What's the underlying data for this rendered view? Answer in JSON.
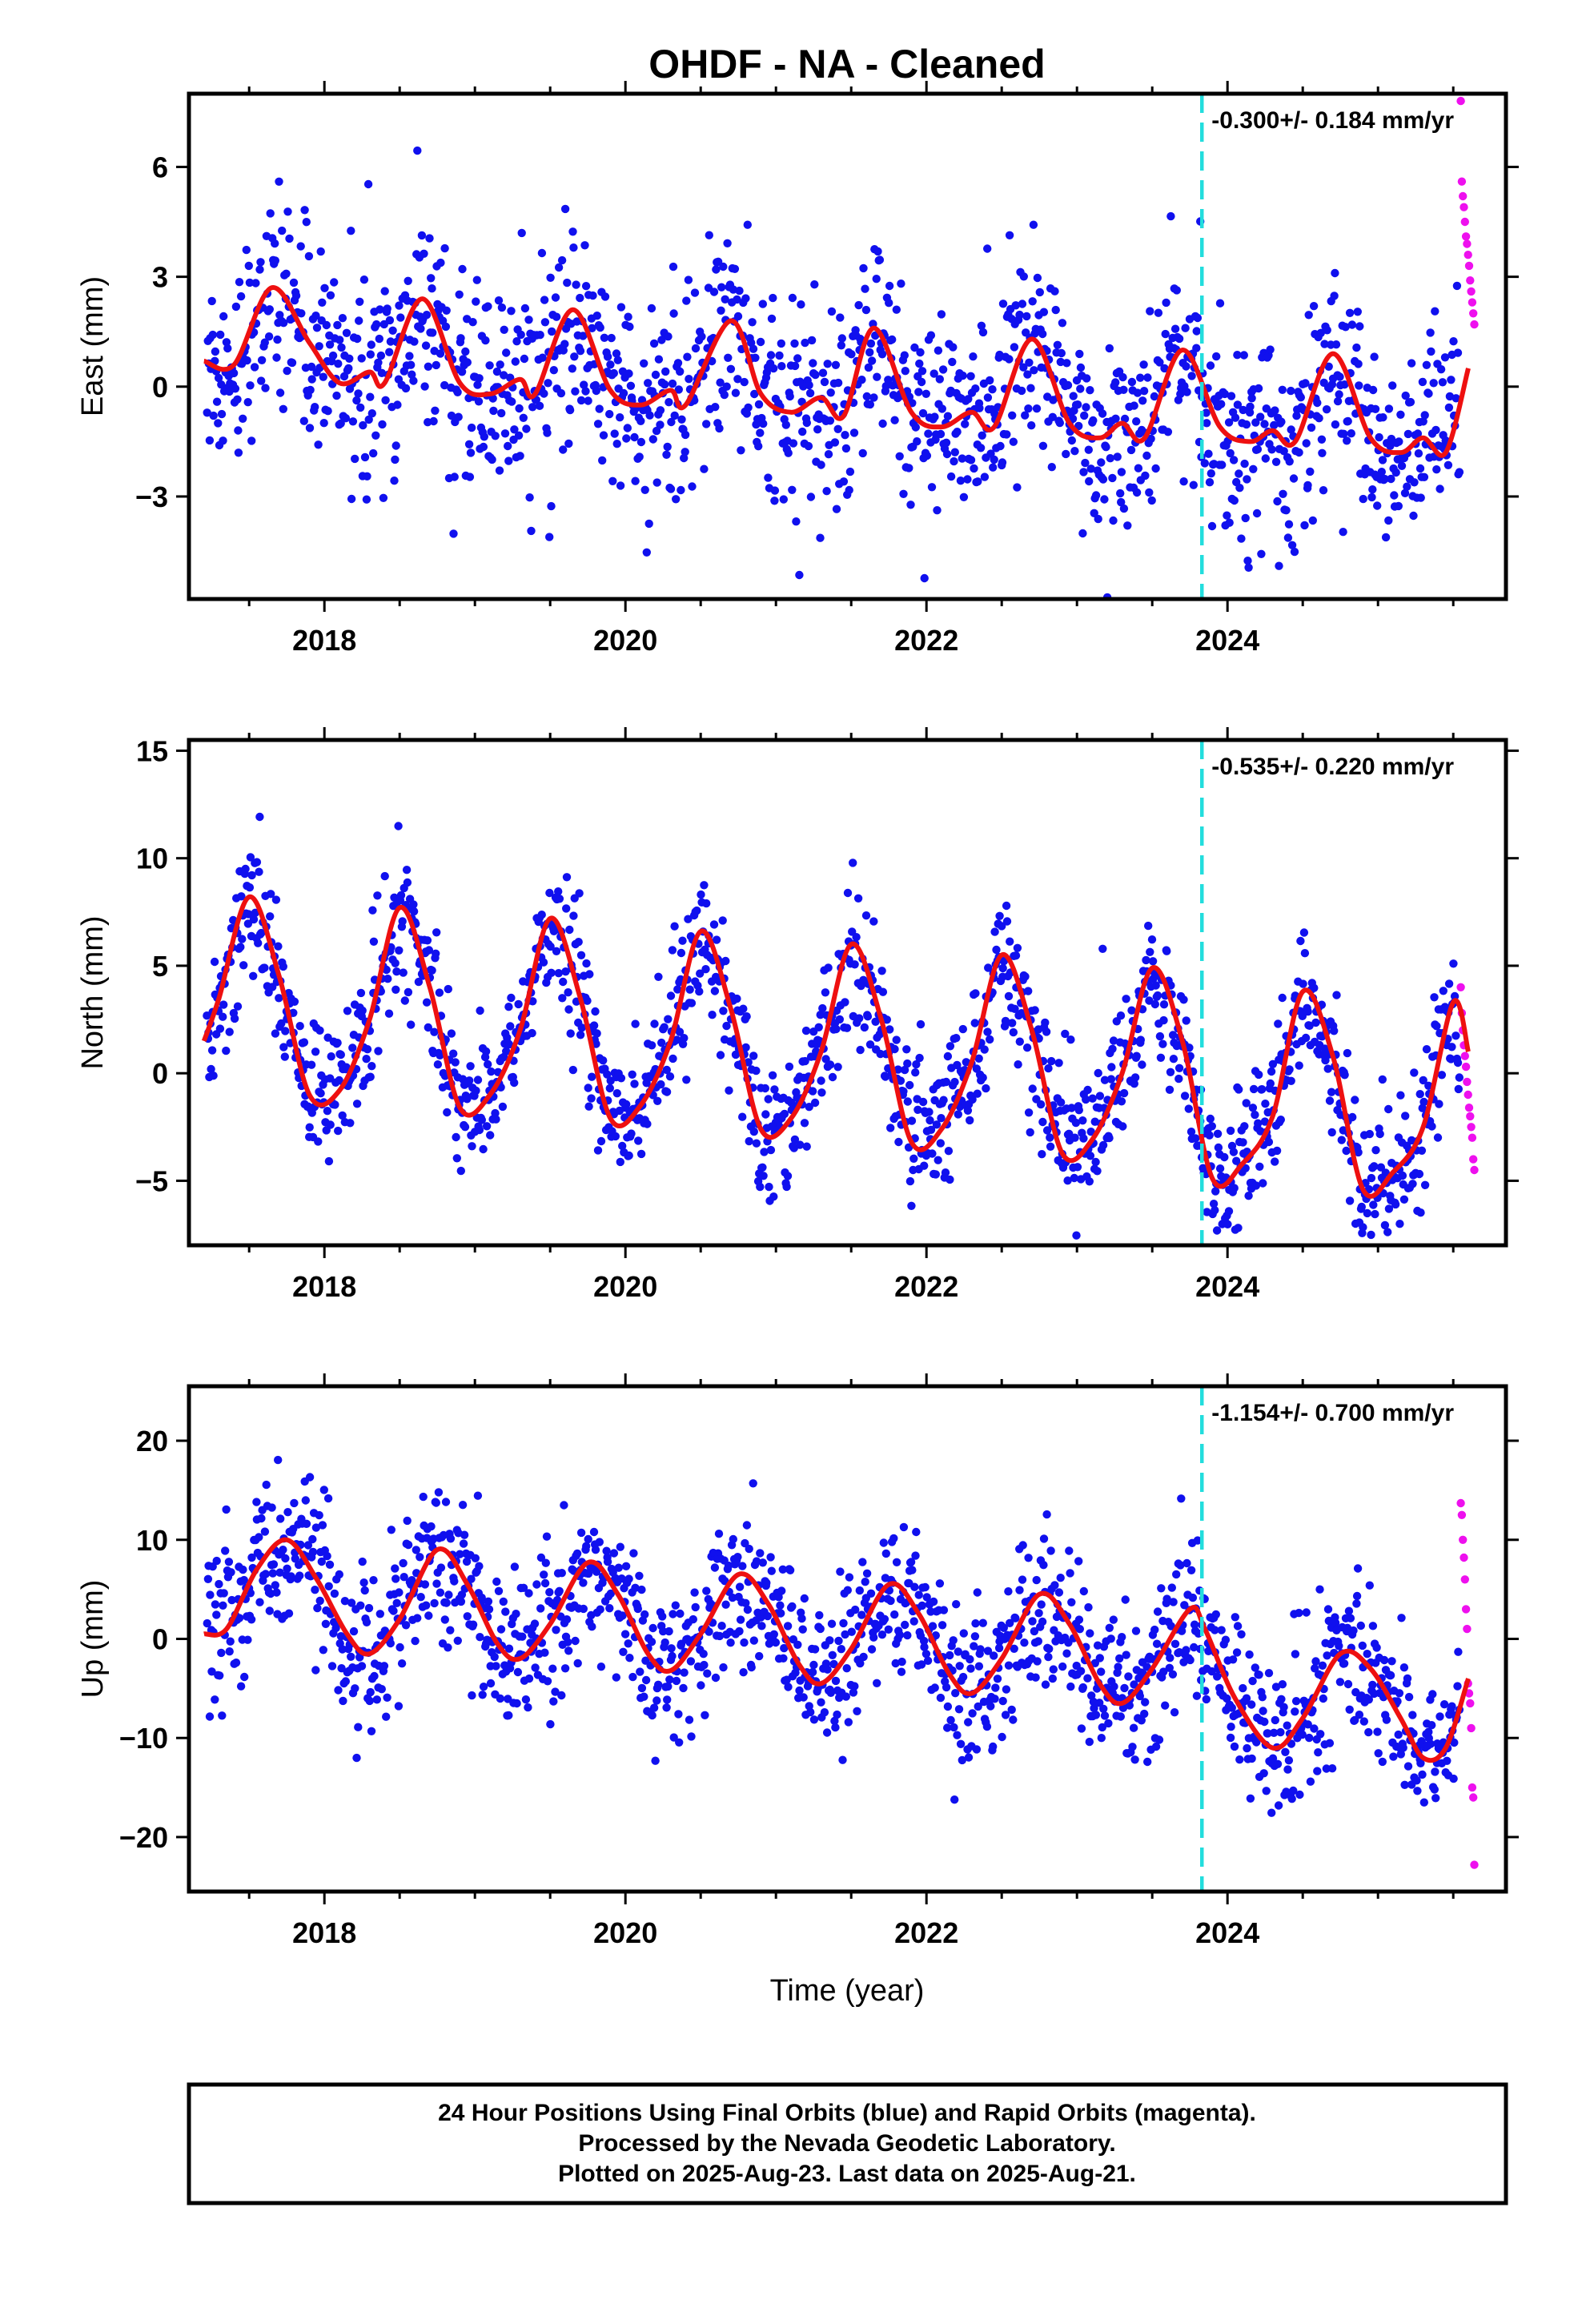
{
  "title": "OHDF  - NA - Cleaned",
  "colors": {
    "final": "#1010ee",
    "rapid": "#ee10ee",
    "model": "#ee1010",
    "event": "#22dddd"
  },
  "chart_data": [
    {
      "type": "scatter",
      "panel": "east",
      "ylabel": "East (mm)",
      "xlabel": "",
      "xlim": [
        2017.1,
        2025.85
      ],
      "ylim": [
        -5.8,
        8.0
      ],
      "yticks": [
        -3,
        0,
        3,
        6
      ],
      "xticks": [
        2018,
        2020,
        2022,
        2024
      ],
      "xticks_minor": [
        2017.5,
        2018.5,
        2019,
        2019.5,
        2020.5,
        2021,
        2021.5,
        2022.5,
        2023,
        2023.5,
        2024.5,
        2025,
        2025.5
      ],
      "rate_label": "-0.300+/- 0.184 mm/yr",
      "event_x": 2023.83,
      "x_range": [
        2017.22,
        2025.54
      ],
      "rapid_x_range": [
        2025.55,
        2025.64
      ],
      "series": [
        {
          "name": "",
          "kind": "model_fit",
          "x": [
            2017.2,
            2017.4,
            2017.65,
            2017.9,
            2018.1,
            2018.3,
            2018.4,
            2018.65,
            2018.9,
            2019.1,
            2019.3,
            2019.4,
            2019.65,
            2019.9,
            2020.1,
            2020.3,
            2020.4,
            2020.7,
            2020.9,
            2021.1,
            2021.3,
            2021.45,
            2021.65,
            2021.9,
            2022.1,
            2022.3,
            2022.45,
            2022.7,
            2022.95,
            2023.15,
            2023.3,
            2023.45,
            2023.7,
            2023.95,
            2024.15,
            2024.3,
            2024.45,
            2024.7,
            2024.95,
            2025.15,
            2025.3,
            2025.45,
            2025.6
          ],
          "y": [
            0.7,
            0.6,
            2.7,
            1.2,
            0.1,
            0.4,
            0.1,
            2.4,
            0.1,
            -0.2,
            0.2,
            -0.2,
            2.1,
            -0.1,
            -0.5,
            -0.1,
            -0.5,
            1.8,
            -0.2,
            -0.7,
            -0.3,
            -0.8,
            1.6,
            -0.7,
            -1.1,
            -0.7,
            -1.1,
            1.3,
            -1.0,
            -1.4,
            -1.0,
            -1.4,
            1.0,
            -1.1,
            -1.5,
            -1.2,
            -1.5,
            0.9,
            -1.4,
            -1.8,
            -1.4,
            -1.8,
            0.5
          ]
        }
      ]
    },
    {
      "type": "scatter",
      "panel": "north",
      "ylabel": "North (mm)",
      "xlabel": "",
      "xlim": [
        2017.1,
        2025.85
      ],
      "ylim": [
        -8.0,
        15.5
      ],
      "yticks": [
        -5,
        0,
        5,
        10,
        15
      ],
      "xticks": [
        2018,
        2020,
        2022,
        2024
      ],
      "xticks_minor": [
        2017.5,
        2018.5,
        2019,
        2019.5,
        2020.5,
        2021,
        2021.5,
        2022.5,
        2023,
        2023.5,
        2024.5,
        2025,
        2025.5
      ],
      "rate_label": "-0.535+/- 0.220 mm/yr",
      "event_x": 2023.83,
      "x_range": [
        2017.22,
        2025.54
      ],
      "rapid_x_range": [
        2025.55,
        2025.64
      ],
      "series": [
        {
          "name": "",
          "kind": "model_fit",
          "x": [
            2017.2,
            2017.3,
            2017.5,
            2017.7,
            2017.9,
            2018.1,
            2018.3,
            2018.5,
            2018.7,
            2018.9,
            2019.1,
            2019.3,
            2019.5,
            2019.7,
            2019.9,
            2020.1,
            2020.3,
            2020.5,
            2020.7,
            2020.9,
            2021.1,
            2021.3,
            2021.5,
            2021.7,
            2021.9,
            2022.1,
            2022.3,
            2022.5,
            2022.7,
            2022.9,
            2023.1,
            2023.3,
            2023.5,
            2023.7,
            2023.9,
            2024.1,
            2024.3,
            2024.5,
            2024.7,
            2024.9,
            2025.1,
            2025.3,
            2025.5,
            2025.6
          ],
          "y": [
            1.5,
            3.5,
            8.2,
            4.5,
            -1.0,
            -0.8,
            2.5,
            7.7,
            4.0,
            -1.6,
            -1.0,
            2.0,
            7.2,
            3.5,
            -2.1,
            -1.5,
            1.5,
            6.6,
            3.0,
            -2.6,
            -2.1,
            1.0,
            6.0,
            2.5,
            -3.2,
            -2.6,
            0.5,
            5.5,
            2.0,
            -3.7,
            -3.1,
            0.0,
            4.9,
            1.5,
            -4.9,
            -4.2,
            -2.0,
            3.8,
            0.8,
            -5.4,
            -4.6,
            -2.5,
            3.3,
            1.0
          ]
        }
      ]
    },
    {
      "type": "scatter",
      "panel": "up",
      "ylabel": "Up (mm)",
      "xlabel": "Time (year)",
      "xlim": [
        2017.1,
        2025.85
      ],
      "ylim": [
        -25.5,
        25.5
      ],
      "yticks": [
        -20,
        -10,
        0,
        10,
        20
      ],
      "xticks": [
        2018,
        2020,
        2022,
        2024
      ],
      "xticks_minor": [
        2017.5,
        2018.5,
        2019,
        2019.5,
        2020.5,
        2021,
        2021.5,
        2022.5,
        2023,
        2023.5,
        2024.5,
        2025,
        2025.5
      ],
      "rate_label": "-1.154+/- 0.700 mm/yr",
      "event_x": 2023.83,
      "x_range": [
        2017.22,
        2025.54
      ],
      "rapid_x_range": [
        2025.55,
        2025.64
      ],
      "series": [
        {
          "name": "",
          "kind": "model_fit",
          "x": [
            2017.2,
            2017.35,
            2017.55,
            2017.75,
            2017.95,
            2018.15,
            2018.3,
            2018.5,
            2018.75,
            2018.95,
            2019.15,
            2019.3,
            2019.5,
            2019.75,
            2019.95,
            2020.15,
            2020.3,
            2020.5,
            2020.75,
            2020.95,
            2021.15,
            2021.3,
            2021.5,
            2021.75,
            2021.95,
            2022.15,
            2022.3,
            2022.5,
            2022.75,
            2022.95,
            2023.15,
            2023.3,
            2023.5,
            2023.75,
            2023.85,
            2024.05,
            2024.3,
            2024.5,
            2024.75,
            2024.95,
            2025.15,
            2025.3,
            2025.45,
            2025.6
          ],
          "y": [
            0.5,
            1.0,
            7.0,
            10.0,
            6.0,
            0.5,
            -1.5,
            2.0,
            9.0,
            5.5,
            -0.5,
            -2.0,
            1.5,
            7.7,
            4.5,
            -1.5,
            -3.2,
            0.5,
            6.5,
            3.5,
            -2.5,
            -4.5,
            -1.0,
            5.5,
            2.5,
            -3.5,
            -5.5,
            -2.0,
            4.5,
            1.5,
            -4.5,
            -6.5,
            -3.0,
            3.0,
            1.0,
            -6.0,
            -11.0,
            -8.0,
            -1.5,
            -3.0,
            -8.0,
            -12.0,
            -11.0,
            -4.0
          ]
        }
      ]
    }
  ],
  "footer": {
    "line1": "24 Hour Positions Using Final Orbits (blue) and Rapid Orbits (magenta).",
    "line2": "Processed by the Nevada Geodetic Laboratory.",
    "line3": "Plotted on 2025-Aug-23. Last data on 2025-Aug-21."
  }
}
